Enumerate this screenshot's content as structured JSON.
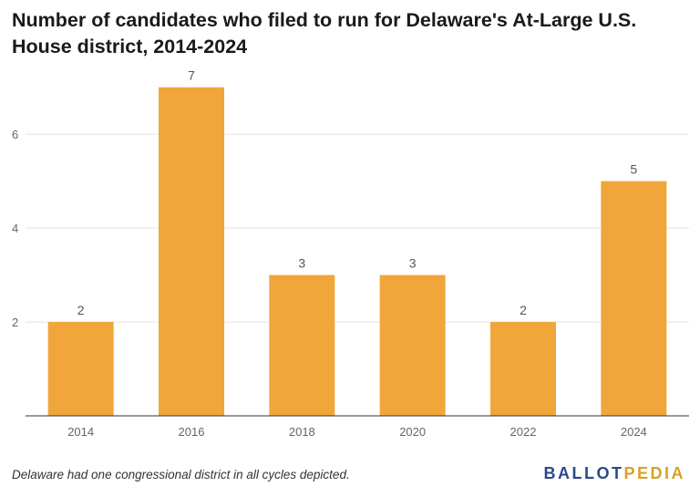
{
  "title": "Number of candidates who filed to run for Delaware's At-Large U.S. House district, 2014-2024",
  "footnote": "Delaware had one congressional district in all cycles depicted.",
  "logo": {
    "part1": "BALLOT",
    "part2": "PEDIA",
    "color1": "#2b4a8c",
    "color2": "#d9a02a"
  },
  "chart_data": {
    "type": "bar",
    "title": "Number of candidates who filed to run for Delaware's At-Large U.S. House district, 2014-2024",
    "categories": [
      "2014",
      "2016",
      "2018",
      "2020",
      "2022",
      "2024"
    ],
    "values": [
      2,
      7,
      3,
      3,
      2,
      5
    ],
    "data_labels": [
      "2",
      "7",
      "3",
      "3",
      "2",
      "5"
    ],
    "yticks": [
      2,
      4,
      6
    ],
    "ylim": [
      0,
      7.5
    ],
    "xlabel": "",
    "ylabel": "",
    "bar_color": "#f0a63a",
    "grid": true
  }
}
